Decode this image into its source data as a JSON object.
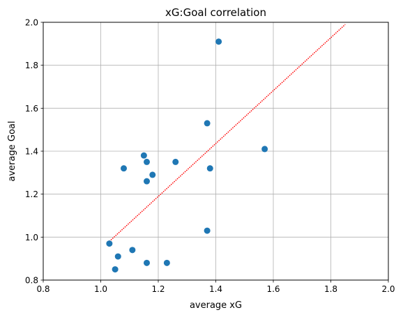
{
  "chart_data": {
    "type": "scatter",
    "title": "xG:Goal correlation",
    "xlabel": "average xG",
    "ylabel": "average Goal",
    "xlim": [
      0.8,
      2.0
    ],
    "ylim": [
      0.8,
      2.0
    ],
    "xticks": [
      "0.8",
      "1.0",
      "1.2",
      "1.4",
      "1.6",
      "1.8",
      "2.0"
    ],
    "yticks": [
      "0.8",
      "1.0",
      "1.2",
      "1.4",
      "1.6",
      "1.8",
      "2.0"
    ],
    "grid": true,
    "series": [
      {
        "kind": "points",
        "color": "#1f77b4",
        "x": [
          1.41,
          1.37,
          1.57,
          1.15,
          1.16,
          1.08,
          1.18,
          1.16,
          1.26,
          1.38,
          1.37,
          1.03,
          1.11,
          1.06,
          1.05,
          1.16,
          1.23
        ],
        "y": [
          1.91,
          1.53,
          1.41,
          1.38,
          1.35,
          1.32,
          1.29,
          1.26,
          1.35,
          1.32,
          1.03,
          0.97,
          0.94,
          0.91,
          0.85,
          0.88,
          0.88
        ]
      },
      {
        "kind": "trendline",
        "color": "#ff0000",
        "style": "dotted",
        "x": [
          1.03,
          1.85
        ],
        "y": [
          0.98,
          1.99
        ]
      }
    ]
  }
}
